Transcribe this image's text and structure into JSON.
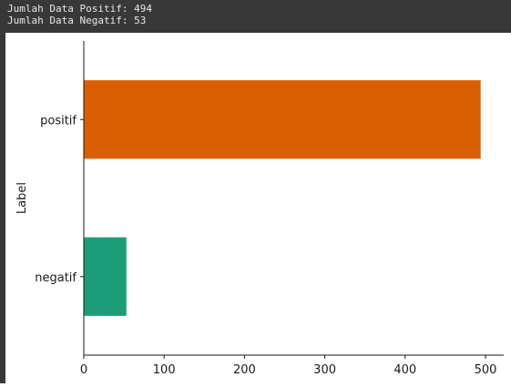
{
  "console": {
    "lines": [
      "Jumlah Data Positif: 494",
      "Jumlah Data Negatif: 53"
    ]
  },
  "chart_data": {
    "type": "bar",
    "orientation": "horizontal",
    "ylabel": "Label",
    "xlabel": "",
    "categories": [
      "negatif",
      "positif"
    ],
    "values": [
      53,
      494
    ],
    "colors": [
      "#1b9e77",
      "#d95f02"
    ],
    "xlim": [
      0,
      520
    ],
    "xticks": [
      0,
      100,
      200,
      300,
      400,
      500
    ],
    "grid": false,
    "legend": "none"
  }
}
